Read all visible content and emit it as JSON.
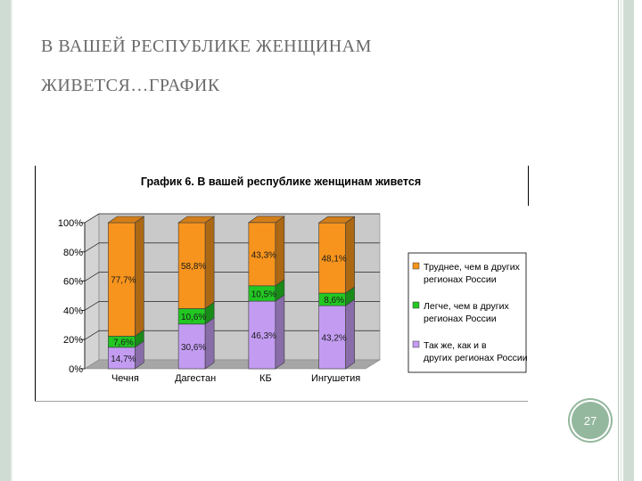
{
  "slide": {
    "title_line1": "В ВАШЕЙ РЕСПУБЛИКЕ ЖЕНЩИНАМ",
    "title_line2": "ЖИВЕТСЯ…ГРАФИК",
    "page_number": "27"
  },
  "colors": {
    "orange": "#f7941d",
    "green": "#22c722",
    "purple": "#c39cf2",
    "accent_frame": "#94b89e",
    "title_text": "#6a6a6a"
  },
  "chart_data": {
    "type": "bar",
    "stacked": true,
    "title": "График 6. В вашей республике женщинам живется",
    "categories": [
      "Чечня",
      "Дагестан",
      "КБ",
      "Ингушетия"
    ],
    "y_ticks": [
      "0%",
      "20%",
      "40%",
      "60%",
      "80%",
      "100%"
    ],
    "ylim": [
      0,
      100
    ],
    "grid": true,
    "legend_position": "right",
    "series": [
      {
        "name": "Так же, как и в других регионах России",
        "color": "#c39cf2",
        "values": [
          14.7,
          30.6,
          46.3,
          43.2
        ],
        "labels": [
          "14,7%",
          "30,6%",
          "46,3%",
          "43,2%"
        ]
      },
      {
        "name": "Легче, чем в других регионах России",
        "color": "#22c722",
        "values": [
          7.6,
          10.6,
          10.5,
          8.6
        ],
        "labels": [
          "7,6%",
          "10,6%",
          "10,5%",
          "8,6%"
        ]
      },
      {
        "name": "Труднее, чем в других регионах России",
        "color": "#f7941d",
        "values": [
          77.7,
          58.8,
          43.3,
          48.1
        ],
        "labels": [
          "77,7%",
          "58,8%",
          "43,3%",
          "48,1%"
        ]
      }
    ]
  }
}
